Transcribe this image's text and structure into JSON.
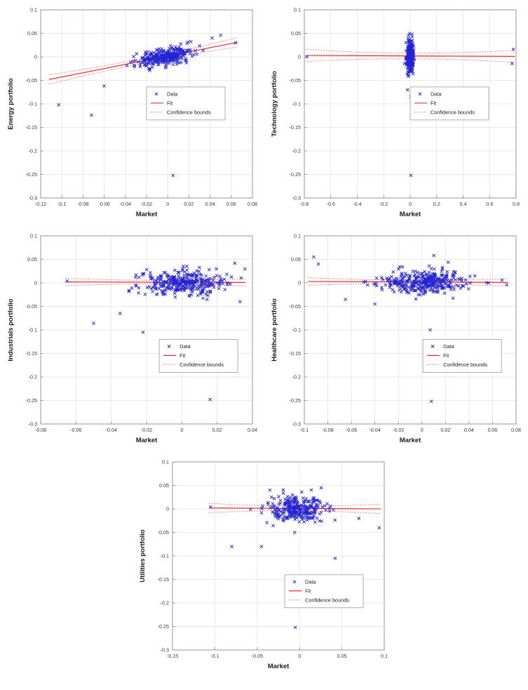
{
  "colors": {
    "marker": "#2323d2",
    "fit": "#f01414",
    "confidence": "#f25555",
    "grid": "#e2e2e2",
    "axis_box": "#8c8c8c",
    "tick_text": "#3a3a3a",
    "label_text": "#1a1a1a",
    "legend_border": "#9a9a9a",
    "background": "#ffffff"
  },
  "chart_data": [
    {
      "type": "scatter",
      "title": "",
      "xlabel": "Market",
      "ylabel": "Energy portfolio",
      "xlim": [
        -0.12,
        0.08
      ],
      "ylim": [
        -0.3,
        0.1
      ],
      "xticks": [
        -0.12,
        -0.1,
        -0.08,
        -0.06,
        -0.04,
        -0.02,
        0,
        0.02,
        0.04,
        0.06,
        0.08
      ],
      "yticks": [
        -0.3,
        -0.25,
        -0.2,
        -0.15,
        -0.1,
        -0.05,
        0,
        0.05,
        0.1
      ],
      "grid": true,
      "legend": [
        "Data",
        "Fit",
        "Confidence bounds"
      ],
      "legend_frac": {
        "x": 0.5,
        "y": 0.41
      },
      "fit": {
        "x": [
          -0.112,
          0.066
        ],
        "y": [
          -0.048,
          0.031
        ]
      },
      "confidence_offset": {
        "mid": 0.005,
        "end": 0.01
      },
      "cluster": {
        "n": 300,
        "x_mean": -0.003,
        "x_std": 0.013,
        "slope": 0.45,
        "intercept": 0.002,
        "y_noise": 0.009,
        "seed": 101
      },
      "outliers": [
        [
          0.005,
          -0.252
        ],
        [
          -0.103,
          -0.102
        ],
        [
          -0.072,
          -0.124
        ],
        [
          -0.06,
          -0.062
        ],
        [
          0.05,
          0.046
        ],
        [
          0.064,
          0.03
        ],
        [
          0.042,
          0.04
        ]
      ]
    },
    {
      "type": "scatter",
      "title": "",
      "xlabel": "Market",
      "ylabel": "Technology portfolio",
      "xlim": [
        -0.8,
        0.8
      ],
      "ylim": [
        -0.3,
        0.1
      ],
      "xticks": [
        -0.8,
        -0.6,
        -0.4,
        -0.2,
        0,
        0.2,
        0.4,
        0.6,
        0.8
      ],
      "yticks": [
        -0.3,
        -0.25,
        -0.2,
        -0.15,
        -0.1,
        -0.05,
        0,
        0.05,
        0.1
      ],
      "grid": true,
      "legend": [
        "Data",
        "Fit",
        "Confidence bounds"
      ],
      "legend_frac": {
        "x": 0.5,
        "y": 0.41
      },
      "fit": {
        "x": [
          -0.79,
          0.79
        ],
        "y": [
          0.003,
          0.001
        ]
      },
      "confidence_offset": {
        "mid": 0.006,
        "end": 0.013
      },
      "cluster": {
        "n": 300,
        "x_mean": 0.0,
        "x_std": 0.013,
        "slope": 0.1,
        "intercept": 0.001,
        "y_noise": 0.017,
        "seed": 202
      },
      "outliers": [
        [
          -0.78,
          0.0
        ],
        [
          0.78,
          0.016
        ],
        [
          0.77,
          -0.014
        ],
        [
          0.005,
          -0.252
        ],
        [
          0.01,
          -0.1
        ],
        [
          0.004,
          -0.085
        ],
        [
          -0.02,
          -0.07
        ],
        [
          0.015,
          0.048
        ]
      ]
    },
    {
      "type": "scatter",
      "title": "",
      "xlabel": "Market",
      "ylabel": "Industrials portfolio",
      "xlim": [
        -0.08,
        0.04
      ],
      "ylim": [
        -0.3,
        0.1
      ],
      "xticks": [
        -0.08,
        -0.06,
        -0.04,
        -0.02,
        0,
        0.02,
        0.04
      ],
      "yticks": [
        -0.3,
        -0.25,
        -0.2,
        -0.15,
        -0.1,
        -0.05,
        0,
        0.05,
        0.1
      ],
      "grid": true,
      "legend": [
        "Data",
        "Fit",
        "Confidence bounds"
      ],
      "legend_frac": {
        "x": 0.56,
        "y": 0.55
      },
      "fit": {
        "x": [
          -0.066,
          0.036
        ],
        "y": [
          0.002,
          0.001
        ]
      },
      "confidence_offset": {
        "mid": 0.004,
        "end": 0.008
      },
      "cluster": {
        "n": 320,
        "x_mean": 0.0,
        "x_std": 0.012,
        "slope": 0.08,
        "intercept": 0.001,
        "y_noise": 0.013,
        "seed": 303
      },
      "outliers": [
        [
          -0.065,
          0.004
        ],
        [
          -0.05,
          -0.086
        ],
        [
          -0.035,
          -0.065
        ],
        [
          0.016,
          -0.248
        ],
        [
          -0.022,
          -0.105
        ],
        [
          0.033,
          -0.04
        ],
        [
          0.03,
          0.042
        ]
      ]
    },
    {
      "type": "scatter",
      "title": "",
      "xlabel": "Market",
      "ylabel": "Healthcare portfolio",
      "xlim": [
        -0.1,
        0.08
      ],
      "ylim": [
        -0.3,
        0.1
      ],
      "xticks": [
        -0.1,
        -0.08,
        -0.06,
        -0.04,
        -0.02,
        0,
        0.02,
        0.04,
        0.06,
        0.08
      ],
      "yticks": [
        -0.3,
        -0.25,
        -0.2,
        -0.15,
        -0.1,
        -0.05,
        0,
        0.05,
        0.1
      ],
      "grid": true,
      "legend": [
        "Data",
        "Fit",
        "Confidence bounds"
      ],
      "legend_frac": {
        "x": 0.56,
        "y": 0.55
      },
      "fit": {
        "x": [
          -0.097,
          0.073
        ],
        "y": [
          0.003,
          0.001
        ]
      },
      "confidence_offset": {
        "mid": 0.004,
        "end": 0.008
      },
      "cluster": {
        "n": 340,
        "x_mean": 0.0,
        "x_std": 0.02,
        "slope": 0.05,
        "intercept": 0.001,
        "y_noise": 0.012,
        "seed": 404
      },
      "outliers": [
        [
          -0.092,
          0.055
        ],
        [
          -0.088,
          0.04
        ],
        [
          0.008,
          -0.252
        ],
        [
          0.007,
          -0.1
        ],
        [
          -0.04,
          -0.045
        ],
        [
          0.068,
          0.006
        ],
        [
          0.072,
          -0.004
        ],
        [
          -0.065,
          -0.035
        ],
        [
          0.01,
          0.058
        ]
      ]
    },
    {
      "type": "scatter",
      "title": "",
      "xlabel": "Market",
      "ylabel": "Utilities portfolio",
      "xlim": [
        -0.15,
        0.1
      ],
      "ylim": [
        -0.3,
        0.1
      ],
      "xticks": [
        -0.15,
        -0.1,
        -0.05,
        0,
        0.05,
        0.1
      ],
      "yticks": [
        -0.3,
        -0.25,
        -0.2,
        -0.15,
        -0.1,
        -0.05,
        0,
        0.05,
        0.1
      ],
      "grid": true,
      "legend": [
        "Data",
        "Fit",
        "Confidence bounds"
      ],
      "legend_frac": {
        "x": 0.53,
        "y": 0.6
      },
      "fit": {
        "x": [
          -0.107,
          0.096
        ],
        "y": [
          0.002,
          0.0
        ]
      },
      "confidence_offset": {
        "mid": 0.005,
        "end": 0.01
      },
      "cluster": {
        "n": 280,
        "x_mean": -0.002,
        "x_std": 0.018,
        "slope": 0.05,
        "intercept": 0.0,
        "y_noise": 0.014,
        "seed": 505
      },
      "outliers": [
        [
          -0.105,
          0.004
        ],
        [
          -0.005,
          -0.252
        ],
        [
          -0.08,
          -0.08
        ],
        [
          0.042,
          -0.105
        ],
        [
          0.094,
          -0.04
        ],
        [
          -0.045,
          -0.08
        ],
        [
          0.07,
          -0.02
        ],
        [
          -0.035,
          0.04
        ]
      ]
    }
  ]
}
